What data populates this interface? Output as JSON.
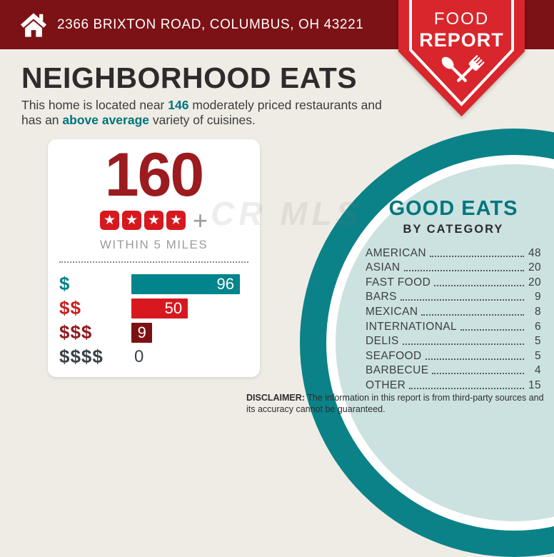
{
  "header": {
    "address": "2366 BRIXTON ROAD, COLUMBUS, OH 43221"
  },
  "badge": {
    "line1": "FOOD",
    "line2": "REPORT"
  },
  "page": {
    "title": "NEIGHBORHOOD EATS",
    "subtitle": {
      "l1a": "This home is located near ",
      "count": "146",
      "l1b": " moderately priced restaurants and",
      "l2a": "has an ",
      "highlight": "above average",
      "l2b": " variety of cuisines."
    }
  },
  "stats_card": {
    "total": "160",
    "rating_stars": 4,
    "rating_suffix": "+",
    "radius_label": "WITHIN 5 MILES"
  },
  "good_eats": {
    "title": "GOOD EATS",
    "subtitle": "BY CATEGORY"
  },
  "disclaimer": {
    "label": "DISCLAIMER:",
    "text": " The information in this report is from third-party sources and its accuracy cannot be guaranteed."
  },
  "watermark": "CR MLS",
  "colors": {
    "banner_red": "#7C1215",
    "badge_red": "#D8262C",
    "teal_ring": "#0B8288",
    "light_teal": "#CBE2E0",
    "dark_red_number": "#9B1B1F",
    "star_red": "#D7191F",
    "background": "#EFECE6",
    "heading_teal": "#00767E"
  },
  "chart_data": [
    {
      "type": "bar",
      "orientation": "horizontal",
      "title": "Restaurants within 5 miles by price level",
      "categories": [
        "$",
        "$$",
        "$$$",
        "$$$$"
      ],
      "values": [
        96,
        50,
        9,
        0
      ],
      "xlim": [
        0,
        96
      ],
      "bar_colors": [
        "#00858C",
        "#D7191F",
        "#7B1114",
        "none"
      ],
      "label_colors": [
        "#00818A",
        "#C9201F",
        "#8E191C",
        "#3A4247"
      ],
      "grid": false,
      "legend": "none"
    },
    {
      "type": "table",
      "title": "GOOD EATS BY CATEGORY",
      "rows": [
        {
          "label": "AMERICAN",
          "value": 48
        },
        {
          "label": "ASIAN",
          "value": 20
        },
        {
          "label": "FAST FOOD",
          "value": 20
        },
        {
          "label": "BARS",
          "value": 9
        },
        {
          "label": "MEXICAN",
          "value": 8
        },
        {
          "label": "INTERNATIONAL",
          "value": 6
        },
        {
          "label": "DELIS",
          "value": 5
        },
        {
          "label": "SEAFOOD",
          "value": 5
        },
        {
          "label": "BARBECUE",
          "value": 4
        },
        {
          "label": "OTHER",
          "value": 15
        }
      ]
    }
  ]
}
